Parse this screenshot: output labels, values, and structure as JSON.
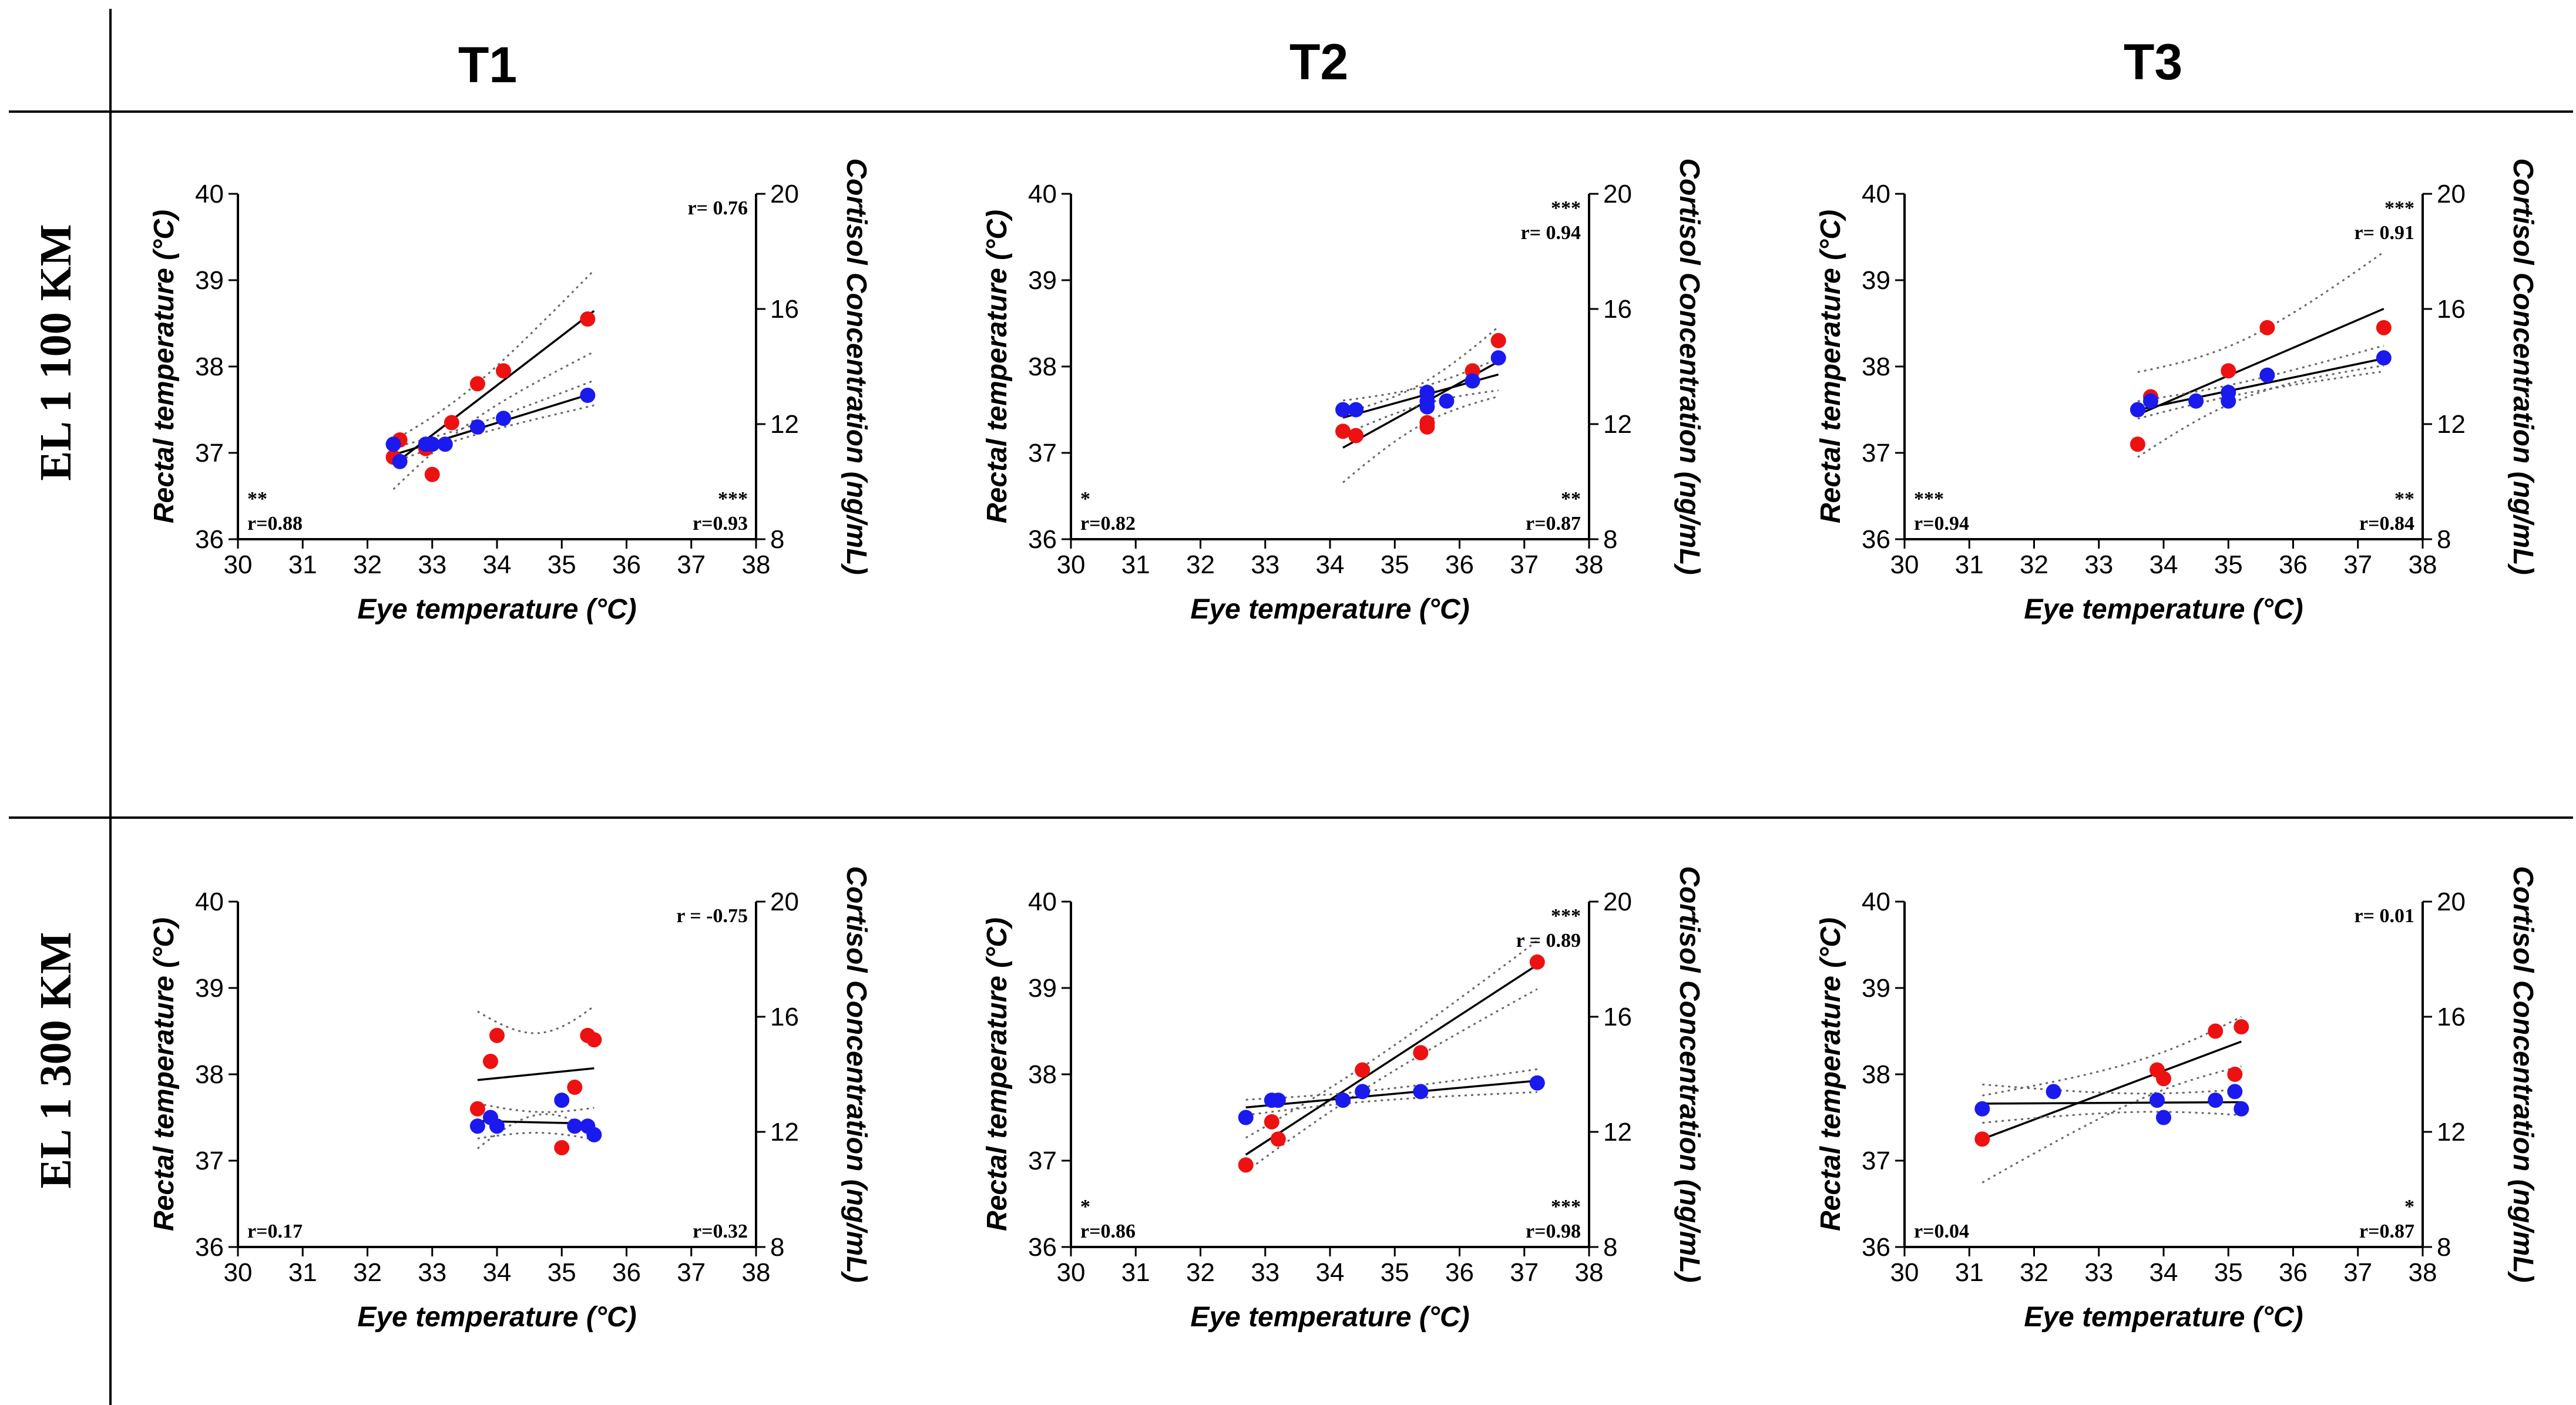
{
  "column_headers": [
    "T1",
    "T2",
    "T3"
  ],
  "row_headers": [
    "EL 1 100 KM",
    "EL 1 300 KM"
  ],
  "colors": {
    "rectal": "#ee1111",
    "cortisol": "#1a1aee",
    "line": "#000000",
    "ci": "#666666"
  },
  "chart_data": [
    {
      "type": "scatter",
      "row": 0,
      "col": 0,
      "xlabel": "Eye temperature (°C)",
      "ylabel": "Rectal temperature (°C)",
      "y2label": "Cortisol Concentration (ng/mL)",
      "xlim": [
        30,
        38
      ],
      "ylim": [
        36,
        40
      ],
      "y2lim": [
        8,
        20
      ],
      "xticks": [
        "30",
        "31",
        "32",
        "33",
        "34",
        "35",
        "36",
        "37",
        "38"
      ],
      "yticks": [
        "36",
        "37",
        "38",
        "39",
        "40"
      ],
      "y2ticks": [
        "8",
        "12",
        "16",
        "20"
      ],
      "series": [
        {
          "name": "Rectal temperature",
          "axis": "left",
          "points": [
            [
              32.4,
              36.95
            ],
            [
              32.5,
              37.15
            ],
            [
              32.9,
              37.05
            ],
            [
              33.0,
              36.75
            ],
            [
              33.3,
              37.35
            ],
            [
              33.7,
              37.8
            ],
            [
              34.1,
              37.95
            ],
            [
              35.4,
              38.55
            ]
          ],
          "fit": [
            32.4,
            35.5
          ]
        },
        {
          "name": "Cortisol Concentration",
          "axis": "right",
          "points": [
            [
              32.4,
              11.3
            ],
            [
              32.5,
              10.7
            ],
            [
              32.9,
              11.3
            ],
            [
              33.0,
              11.3
            ],
            [
              33.2,
              11.3
            ],
            [
              33.7,
              11.9
            ],
            [
              34.1,
              12.2
            ],
            [
              35.4,
              13.0
            ]
          ],
          "fit": [
            32.4,
            35.5
          ]
        }
      ],
      "annotations": {
        "top_right": [
          "r= 0.76"
        ],
        "bottom_left": [
          "**",
          "r=0.88"
        ],
        "bottom_right": [
          "***",
          "r=0.93"
        ]
      }
    },
    {
      "type": "scatter",
      "row": 0,
      "col": 1,
      "xlabel": "Eye temperature (°C)",
      "ylabel": "Rectal temperature (°C)",
      "y2label": "Cortisol Concentration (ng/mL)",
      "xlim": [
        30,
        38
      ],
      "ylim": [
        36,
        40
      ],
      "y2lim": [
        8,
        20
      ],
      "xticks": [
        "30",
        "31",
        "32",
        "33",
        "34",
        "35",
        "36",
        "37",
        "38"
      ],
      "yticks": [
        "36",
        "37",
        "38",
        "39",
        "40"
      ],
      "y2ticks": [
        "8",
        "12",
        "16",
        "20"
      ],
      "series": [
        {
          "name": "Rectal temperature",
          "axis": "left",
          "points": [
            [
              34.2,
              37.25
            ],
            [
              34.4,
              37.2
            ],
            [
              35.5,
              37.3
            ],
            [
              35.5,
              37.35
            ],
            [
              36.2,
              37.95
            ],
            [
              36.6,
              38.3
            ]
          ],
          "fit": [
            34.2,
            36.6
          ]
        },
        {
          "name": "Cortisol Concentration",
          "axis": "right",
          "points": [
            [
              34.2,
              12.5
            ],
            [
              34.4,
              12.5
            ],
            [
              35.5,
              12.6
            ],
            [
              35.5,
              12.8
            ],
            [
              35.5,
              13.1
            ],
            [
              35.8,
              12.8
            ],
            [
              36.2,
              13.5
            ],
            [
              36.6,
              14.3
            ]
          ],
          "fit": [
            34.2,
            36.6
          ]
        }
      ],
      "annotations": {
        "top_right": [
          "***",
          "r= 0.94"
        ],
        "bottom_left": [
          "*",
          "r=0.82"
        ],
        "bottom_right": [
          "**",
          "r=0.87"
        ]
      }
    },
    {
      "type": "scatter",
      "row": 0,
      "col": 2,
      "xlabel": "Eye temperature (°C)",
      "ylabel": "Rectal temperature (°C)",
      "y2label": "Cortisol Concentration (ng/mL)",
      "xlim": [
        30,
        38
      ],
      "ylim": [
        36,
        40
      ],
      "y2lim": [
        8,
        20
      ],
      "xticks": [
        "30",
        "31",
        "32",
        "33",
        "34",
        "35",
        "36",
        "37",
        "38"
      ],
      "yticks": [
        "36",
        "37",
        "38",
        "39",
        "40"
      ],
      "y2ticks": [
        "8",
        "12",
        "16",
        "20"
      ],
      "series": [
        {
          "name": "Rectal temperature",
          "axis": "left",
          "points": [
            [
              33.6,
              37.1
            ],
            [
              33.8,
              37.65
            ],
            [
              35.0,
              37.95
            ],
            [
              35.6,
              38.45
            ],
            [
              37.4,
              38.45
            ]
          ],
          "fit": [
            33.6,
            37.4
          ]
        },
        {
          "name": "Cortisol Concentration",
          "axis": "right",
          "points": [
            [
              33.6,
              12.5
            ],
            [
              33.8,
              12.8
            ],
            [
              34.5,
              12.8
            ],
            [
              35.0,
              12.8
            ],
            [
              35.0,
              13.1
            ],
            [
              35.6,
              13.7
            ],
            [
              37.4,
              14.3
            ]
          ],
          "fit": [
            33.6,
            37.4
          ]
        }
      ],
      "annotations": {
        "top_right": [
          "***",
          "r= 0.91"
        ],
        "bottom_left": [
          "***",
          "r=0.94"
        ],
        "bottom_right": [
          "**",
          "r=0.84"
        ]
      }
    },
    {
      "type": "scatter",
      "row": 1,
      "col": 0,
      "xlabel": "Eye temperature (°C)",
      "ylabel": "Rectal temperature (°C)",
      "y2label": "Cortisol Concentration (ng/mL)",
      "xlim": [
        30,
        38
      ],
      "ylim": [
        36,
        40
      ],
      "y2lim": [
        8,
        20
      ],
      "xticks": [
        "30",
        "31",
        "32",
        "33",
        "34",
        "35",
        "36",
        "37",
        "38"
      ],
      "yticks": [
        "36",
        "37",
        "38",
        "39",
        "40"
      ],
      "y2ticks": [
        "8",
        "12",
        "16",
        "20"
      ],
      "series": [
        {
          "name": "Rectal temperature",
          "axis": "left",
          "points": [
            [
              33.7,
              37.6
            ],
            [
              33.9,
              38.15
            ],
            [
              34.0,
              38.45
            ],
            [
              35.0,
              37.15
            ],
            [
              35.2,
              37.85
            ],
            [
              35.4,
              38.45
            ],
            [
              35.5,
              38.4
            ]
          ],
          "fit": [
            33.7,
            35.5
          ]
        },
        {
          "name": "Cortisol Concentration",
          "axis": "right",
          "points": [
            [
              33.7,
              12.2
            ],
            [
              33.9,
              12.5
            ],
            [
              34.0,
              12.2
            ],
            [
              35.0,
              13.1
            ],
            [
              35.2,
              12.2
            ],
            [
              35.4,
              12.2
            ],
            [
              35.5,
              11.9
            ]
          ],
          "fit": [
            33.7,
            35.5
          ]
        }
      ],
      "annotations": {
        "top_right": [
          "r = -0.75"
        ],
        "bottom_left": [
          "r=0.17"
        ],
        "bottom_right": [
          "r=0.32"
        ]
      }
    },
    {
      "type": "scatter",
      "row": 1,
      "col": 1,
      "xlabel": "Eye temperature (°C)",
      "ylabel": "Rectal temperature (°C)",
      "y2label": "Cortisol Concentration (ng/mL)",
      "xlim": [
        30,
        38
      ],
      "ylim": [
        36,
        40
      ],
      "y2lim": [
        8,
        20
      ],
      "xticks": [
        "30",
        "31",
        "32",
        "33",
        "34",
        "35",
        "36",
        "37",
        "38"
      ],
      "yticks": [
        "36",
        "37",
        "38",
        "39",
        "40"
      ],
      "y2ticks": [
        "8",
        "12",
        "16",
        "20"
      ],
      "series": [
        {
          "name": "Rectal temperature",
          "axis": "left",
          "points": [
            [
              32.7,
              36.95
            ],
            [
              33.1,
              37.45
            ],
            [
              33.2,
              37.25
            ],
            [
              34.5,
              38.05
            ],
            [
              35.4,
              38.25
            ],
            [
              37.2,
              39.3
            ]
          ],
          "fit": [
            32.7,
            37.2
          ]
        },
        {
          "name": "Cortisol Concentration",
          "axis": "right",
          "points": [
            [
              32.7,
              12.5
            ],
            [
              33.1,
              13.1
            ],
            [
              33.2,
              13.1
            ],
            [
              34.2,
              13.1
            ],
            [
              34.5,
              13.4
            ],
            [
              35.4,
              13.4
            ],
            [
              37.2,
              13.7
            ]
          ],
          "fit": [
            32.7,
            37.2
          ]
        }
      ],
      "annotations": {
        "top_right": [
          "***",
          "r = 0.89"
        ],
        "bottom_left": [
          "*",
          "r=0.86"
        ],
        "bottom_right": [
          "***",
          "r=0.98"
        ]
      }
    },
    {
      "type": "scatter",
      "row": 1,
      "col": 2,
      "xlabel": "Eye temperature (°C)",
      "ylabel": "Rectal temperature (°C)",
      "y2label": "Cortisol Concentration (ng/mL)",
      "xlim": [
        30,
        38
      ],
      "ylim": [
        36,
        40
      ],
      "y2lim": [
        8,
        20
      ],
      "xticks": [
        "30",
        "31",
        "32",
        "33",
        "34",
        "35",
        "36",
        "37",
        "38"
      ],
      "yticks": [
        "36",
        "37",
        "38",
        "39",
        "40"
      ],
      "y2ticks": [
        "8",
        "12",
        "16",
        "20"
      ],
      "series": [
        {
          "name": "Rectal temperature",
          "axis": "left",
          "points": [
            [
              31.2,
              37.25
            ],
            [
              33.9,
              38.05
            ],
            [
              34.0,
              37.95
            ],
            [
              34.8,
              38.5
            ],
            [
              35.1,
              38.0
            ],
            [
              35.2,
              38.55
            ]
          ],
          "fit": [
            31.2,
            35.2
          ]
        },
        {
          "name": "Cortisol Concentration",
          "axis": "right",
          "points": [
            [
              31.2,
              12.8
            ],
            [
              32.3,
              13.4
            ],
            [
              33.9,
              13.1
            ],
            [
              34.0,
              12.5
            ],
            [
              34.8,
              13.1
            ],
            [
              35.1,
              13.4
            ],
            [
              35.2,
              12.8
            ]
          ],
          "fit": [
            31.2,
            35.2
          ]
        }
      ],
      "annotations": {
        "top_right": [
          "r= 0.01"
        ],
        "bottom_left": [
          "r=0.04"
        ],
        "bottom_right": [
          "*",
          "r=0.87"
        ]
      }
    }
  ]
}
